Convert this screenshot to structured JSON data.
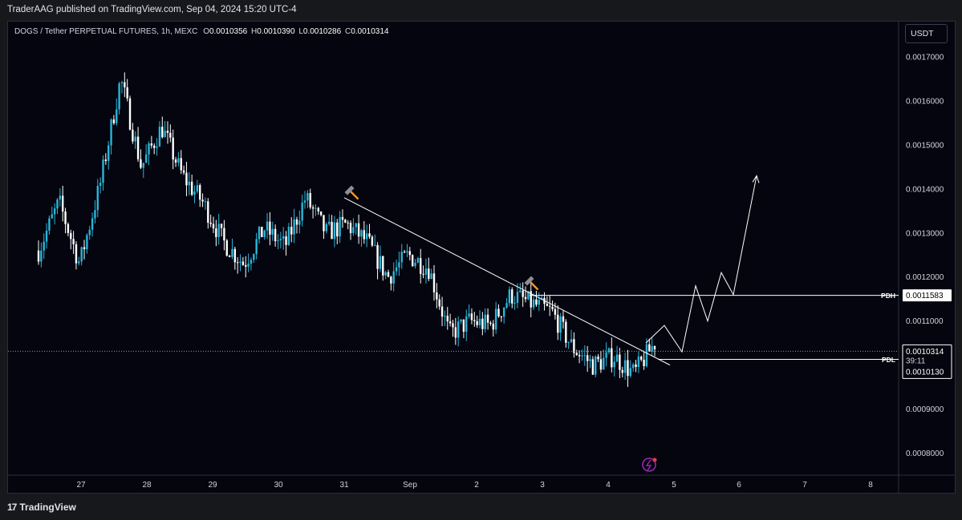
{
  "header": {
    "publisher_line": "TraderAAG published on TradingView.com, Sep 04, 2024 15:20 UTC-4"
  },
  "legend": {
    "symbol": "DOGS / Tether PERPETUAL FUTURES, 1h, MEXC",
    "o_label": "O",
    "o_value": "0.0010356",
    "h_label": "H",
    "h_value": "0.0010390",
    "l_label": "L",
    "l_value": "0.0010286",
    "c_label": "C",
    "c_value": "0.0010314"
  },
  "currency_button": "USDT",
  "footer": {
    "brand_logo": "17",
    "brand": "TradingView"
  },
  "colors": {
    "background": "#05050f",
    "candle_up": "#29b6d9",
    "candle_down": "#ffffff",
    "line": "#ffffff",
    "hammer_icon": "#f59a23",
    "alert_icon": "#9c27b0"
  },
  "icons": [
    "hammer-icon",
    "hammer-icon",
    "lightning-alert-icon"
  ],
  "chart_data": {
    "type": "candlestick",
    "y_ticks": [
      "0.0017000",
      "0.0016000",
      "0.0015000",
      "0.0014000",
      "0.0013000",
      "0.0012000",
      "0.0011000",
      "0.0009000",
      "0.0008000"
    ],
    "x_ticks": [
      "27",
      "28",
      "29",
      "30",
      "31",
      "Sep",
      "2",
      "3",
      "4",
      "5",
      "6",
      "7",
      "8"
    ],
    "ylim": [
      0.00075,
      0.00178
    ],
    "grid": false,
    "levels": [
      {
        "label": "PDH",
        "value": "0.0011583"
      },
      {
        "label": "PDL",
        "value": "0.0010130"
      }
    ],
    "current_price": {
      "value": "0.0010314",
      "countdown": "39:11"
    },
    "trendline": {
      "start": [
        "31",
        0.00138
      ],
      "end": [
        "5",
        0.001
      ]
    },
    "price_path": [
      0.00126,
      0.00137,
      0.00123,
      0.00141,
      0.00165,
      0.00145,
      0.00154,
      0.00143,
      0.00137,
      0.00128,
      0.00123,
      0.00131,
      0.00127,
      0.00138,
      0.0013,
      0.00132,
      0.00128,
      0.0012,
      0.00125,
      0.00122,
      0.00107,
      0.0011,
      0.00109,
      0.00116,
      0.00114,
      0.00112,
      0.00104,
      0.001,
      0.00102,
      0.00098,
      0.00105
    ],
    "projection": [
      0.00105,
      0.00109,
      0.00103,
      0.00118,
      0.0011,
      0.00121,
      0.00116,
      0.00143
    ]
  }
}
